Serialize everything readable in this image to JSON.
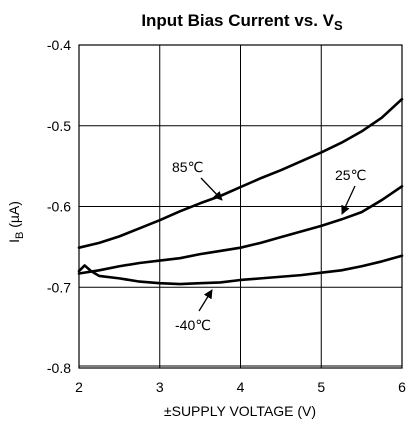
{
  "chart_data": {
    "type": "line",
    "title": {
      "main": "Input Bias Current vs. V",
      "sub": "S"
    },
    "xlabel": "±SUPPLY VOLTAGE (V)",
    "ylabel": {
      "main": "I",
      "sub": "B",
      "units": " (µA)"
    },
    "xlim": [
      2,
      6
    ],
    "ylim": [
      -0.8,
      -0.4
    ],
    "xticks": [
      2,
      3,
      4,
      5,
      6
    ],
    "xtick_labels": [
      "2",
      "3",
      "4",
      "5",
      "6"
    ],
    "yticks": [
      -0.4,
      -0.5,
      -0.6,
      -0.7,
      -0.8
    ],
    "ytick_labels": [
      "-0.4",
      "-0.5",
      "-0.6",
      "-0.7",
      "-0.8"
    ],
    "grid": true,
    "series": [
      {
        "name": "85℃",
        "x": [
          2.0,
          2.25,
          2.5,
          2.75,
          3.0,
          3.25,
          3.5,
          3.75,
          4.0,
          4.25,
          4.5,
          4.75,
          5.0,
          5.25,
          5.5,
          5.75,
          6.0
        ],
        "y": [
          -0.651,
          -0.645,
          -0.637,
          -0.627,
          -0.617,
          -0.606,
          -0.596,
          -0.587,
          -0.576,
          -0.565,
          -0.555,
          -0.544,
          -0.533,
          -0.521,
          -0.507,
          -0.49,
          -0.467
        ]
      },
      {
        "name": "25℃",
        "x": [
          2.0,
          2.25,
          2.5,
          2.75,
          3.0,
          3.25,
          3.5,
          3.75,
          4.0,
          4.25,
          4.5,
          4.75,
          5.0,
          5.25,
          5.5,
          5.75,
          6.0
        ],
        "y": [
          -0.683,
          -0.679,
          -0.674,
          -0.67,
          -0.667,
          -0.664,
          -0.659,
          -0.655,
          -0.651,
          -0.645,
          -0.638,
          -0.631,
          -0.624,
          -0.616,
          -0.607,
          -0.592,
          -0.575
        ]
      },
      {
        "name": "-40℃",
        "x": [
          2.0,
          2.07,
          2.15,
          2.25,
          2.5,
          2.75,
          3.0,
          3.25,
          3.5,
          3.75,
          4.0,
          4.25,
          4.5,
          4.75,
          5.0,
          5.25,
          5.5,
          5.75,
          6.0
        ],
        "y": [
          -0.68,
          -0.673,
          -0.68,
          -0.686,
          -0.689,
          -0.693,
          -0.695,
          -0.696,
          -0.695,
          -0.694,
          -0.691,
          -0.689,
          -0.687,
          -0.685,
          -0.682,
          -0.679,
          -0.674,
          -0.668,
          -0.661
        ]
      }
    ],
    "annotations": [
      {
        "text": "85℃",
        "series": "85℃"
      },
      {
        "text": "25℃",
        "series": "25℃"
      },
      {
        "text": "-40℃",
        "series": "-40℃"
      }
    ]
  }
}
